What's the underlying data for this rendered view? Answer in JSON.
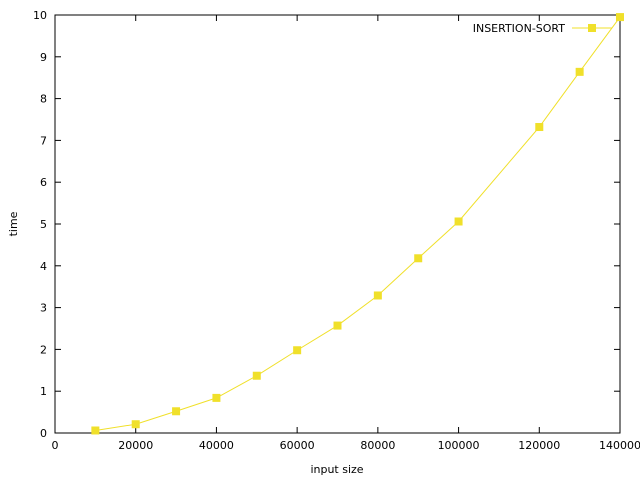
{
  "chart_data": {
    "type": "line",
    "xlabel": "input size",
    "ylabel": "time",
    "xlim": [
      0,
      140000
    ],
    "ylim": [
      0,
      10
    ],
    "xticks": [
      0,
      20000,
      40000,
      60000,
      80000,
      100000,
      120000,
      140000
    ],
    "yticks": [
      0,
      1,
      2,
      3,
      4,
      5,
      6,
      7,
      8,
      9,
      10
    ],
    "grid": false,
    "legend": "top-right",
    "series": [
      {
        "name": "INSERTION-SORT",
        "color": "#f0e02a",
        "marker": "square",
        "x": [
          10000,
          20000,
          30000,
          40000,
          50000,
          60000,
          70000,
          80000,
          90000,
          100000,
          120000,
          130000,
          140000
        ],
        "y": [
          0.06,
          0.21,
          0.52,
          0.84,
          1.37,
          1.98,
          2.57,
          3.29,
          4.18,
          5.06,
          7.32,
          8.64,
          9.95
        ]
      }
    ]
  }
}
